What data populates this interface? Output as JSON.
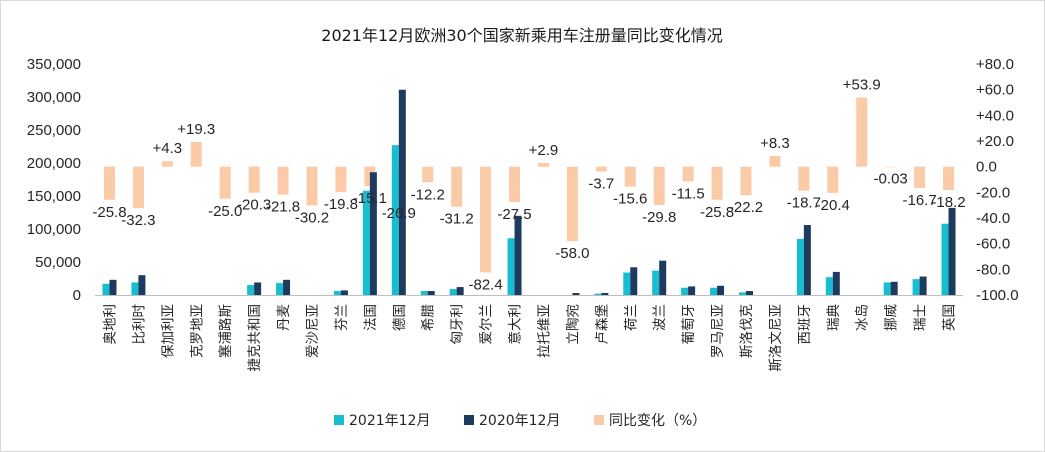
{
  "chart_data": {
    "type": "bar",
    "title": "2021年12月欧洲30个国家新乘用车注册量同比变化情况",
    "categories": [
      "奥地利",
      "比利时",
      "保加利亚",
      "克罗地亚",
      "塞浦路斯",
      "捷克共和国",
      "丹麦",
      "爱沙尼亚",
      "芬兰",
      "法国",
      "德国",
      "希腊",
      "匈牙利",
      "爱尔兰",
      "意大利",
      "拉托维亚",
      "立陶宛",
      "卢森堡",
      "荷兰",
      "波兰",
      "葡萄牙",
      "罗马尼亚",
      "斯洛伐克",
      "斯洛文尼亚",
      "西班牙",
      "瑞典",
      "冰岛",
      "挪威",
      "瑞士",
      "英国"
    ],
    "series": [
      {
        "name": "2021年12月",
        "axis": "left",
        "color": "#17becf",
        "values": [
          17000,
          19000,
          0,
          0,
          0,
          15000,
          18000,
          0,
          6000,
          158000,
          227000,
          6000,
          9000,
          0,
          86000,
          0,
          0,
          2000,
          34000,
          37000,
          11000,
          11000,
          4000,
          0,
          85000,
          27000,
          0,
          19000,
          24000,
          108000
        ]
      },
      {
        "name": "2020年12月",
        "axis": "left",
        "color": "#1f3a5f",
        "values": [
          23000,
          30000,
          0,
          0,
          0,
          19000,
          23000,
          0,
          7000,
          186000,
          311000,
          6000,
          12000,
          0,
          120000,
          0,
          3000,
          3000,
          42000,
          52000,
          13000,
          14000,
          6000,
          0,
          106000,
          35000,
          0,
          20000,
          28000,
          132000
        ]
      },
      {
        "name": "同比变化（%）",
        "axis": "right",
        "color": "#fbcba8",
        "values": [
          -25.8,
          -32.3,
          4.3,
          19.3,
          -25.0,
          -20.3,
          -21.8,
          -30.2,
          -19.8,
          -15.1,
          -26.9,
          -12.2,
          -31.2,
          -82.4,
          -27.5,
          2.9,
          -58.0,
          -3.7,
          -15.6,
          -29.8,
          -11.5,
          -25.8,
          -22.2,
          8.3,
          -18.7,
          -20.4,
          53.9,
          -0.03,
          -16.7,
          -18.2
        ],
        "labels": [
          "-25.8",
          "-32.3",
          "+4.3",
          "+19.3",
          "-25.0",
          "-20.3",
          "-21.8",
          "-30.2",
          "-19.8",
          "-15.1",
          "-26.9",
          "-12.2",
          "-31.2",
          "-82.4",
          "-27.5",
          "+2.9",
          "-58.0",
          "-3.7",
          "-15.6",
          "-29.8",
          "-11.5",
          "-25.8",
          "-22.2",
          "+8.3",
          "-18.7",
          "-20.4",
          "+53.9",
          "-0.03",
          "-16.7",
          "-18.2"
        ]
      }
    ],
    "ylim_left": [
      0,
      350000
    ],
    "yticks_left": [
      "0",
      "50,000",
      "100,000",
      "150,000",
      "200,000",
      "250,000",
      "300,000",
      "350,000"
    ],
    "ylim_right": [
      -100,
      80
    ],
    "yticks_right": [
      "-100.0",
      "-80.0",
      "-60.0",
      "-40.0",
      "-20.0",
      "0.0",
      "+20.0",
      "+40.0",
      "+60.0",
      "+80.0"
    ],
    "legend_position": "bottom",
    "grid": false
  }
}
